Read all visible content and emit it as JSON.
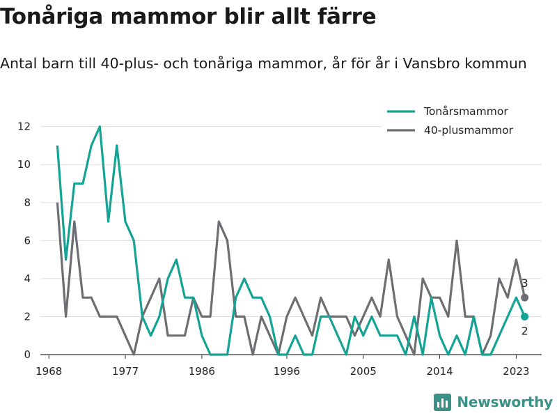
{
  "header": {
    "title": "Tonåriga mammor blir allt färre",
    "subtitle": "Antal barn till 40-plus- och tonåriga mammor, år för år i Vansbro kommun"
  },
  "brand": {
    "name": "Newsworthy",
    "color": "#3a9188"
  },
  "chart_data": {
    "type": "line",
    "x": [
      1969,
      1970,
      1971,
      1972,
      1973,
      1974,
      1975,
      1976,
      1977,
      1978,
      1979,
      1980,
      1981,
      1982,
      1983,
      1984,
      1985,
      1986,
      1987,
      1988,
      1989,
      1990,
      1991,
      1992,
      1993,
      1994,
      1995,
      1996,
      1997,
      1998,
      1999,
      2000,
      2001,
      2002,
      2003,
      2004,
      2005,
      2006,
      2007,
      2008,
      2009,
      2010,
      2011,
      2012,
      2013,
      2014,
      2015,
      2016,
      2017,
      2018,
      2019,
      2020,
      2021,
      2022,
      2023,
      2024
    ],
    "series": [
      {
        "name": "Tonårsmammor",
        "color": "#14a394",
        "values": [
          11,
          5,
          9,
          9,
          11,
          12,
          7,
          11,
          7,
          6,
          2,
          1,
          2,
          4,
          5,
          3,
          3,
          1,
          0,
          0,
          0,
          3,
          4,
          3,
          3,
          2,
          0,
          0,
          1,
          0,
          0,
          2,
          2,
          1,
          0,
          2,
          1,
          2,
          1,
          1,
          1,
          0,
          2,
          0,
          3,
          1,
          0,
          1,
          0,
          2,
          0,
          0,
          1,
          2,
          3,
          2
        ]
      },
      {
        "name": "40-plusmammor",
        "color": "#6d6e72",
        "values": [
          8,
          2,
          7,
          3,
          3,
          2,
          2,
          2,
          1,
          0,
          2,
          3,
          4,
          1,
          1,
          1,
          3,
          2,
          2,
          7,
          6,
          2,
          2,
          0,
          2,
          1,
          0,
          2,
          3,
          2,
          1,
          3,
          2,
          2,
          2,
          1,
          2,
          3,
          2,
          5,
          2,
          1,
          0,
          4,
          3,
          3,
          2,
          6,
          2,
          2,
          0,
          1,
          4,
          3,
          5,
          3
        ]
      }
    ],
    "end_labels": [
      "2",
      "3"
    ],
    "xticks": [
      1968,
      1977,
      1986,
      1996,
      2005,
      2014,
      2023
    ],
    "yticks": [
      0,
      2,
      4,
      6,
      8,
      10,
      12
    ],
    "xlim": [
      1967,
      2026
    ],
    "ylim": [
      0,
      12.5
    ],
    "grid": "horizontal",
    "legend_position": "top-right",
    "xlabel": "",
    "ylabel": ""
  }
}
